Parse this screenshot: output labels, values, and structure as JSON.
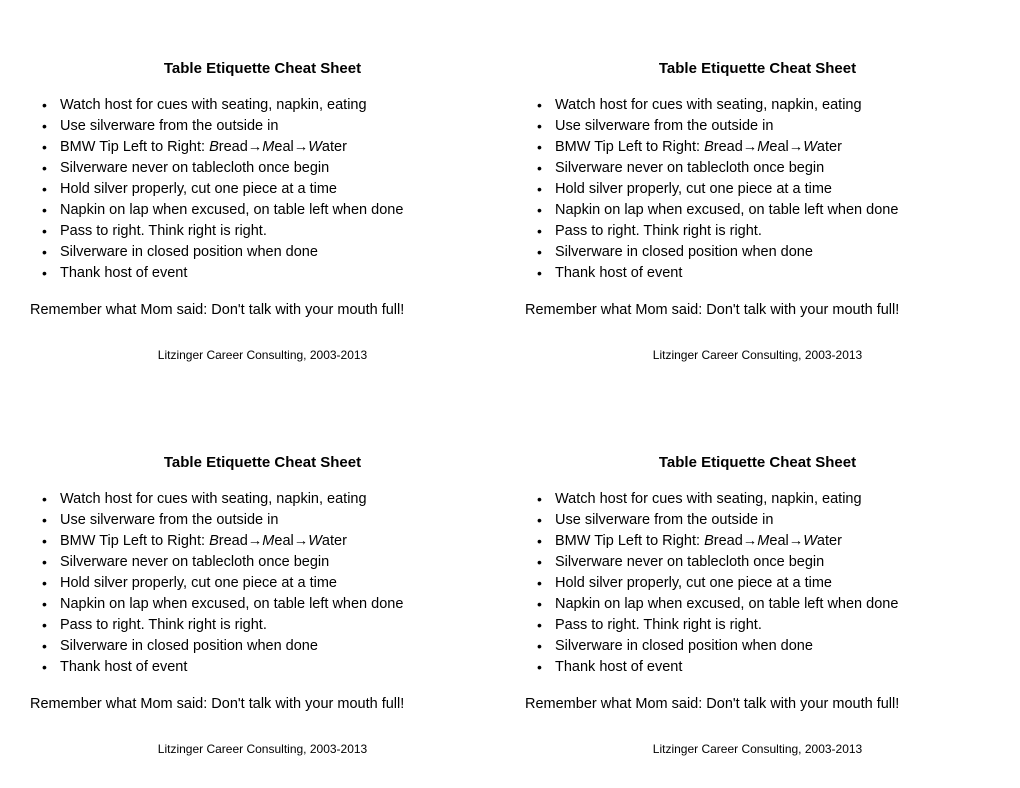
{
  "title": "Table Etiquette Cheat Sheet",
  "tips": [
    "Watch host for cues with seating, napkin, eating",
    "Use silverware from the outside in",
    "__BMW__",
    "Silverware never on tablecloth once begin",
    "Hold silver properly, cut one piece at a time",
    "Napkin on lap when excused, on table left when done",
    "__PASS__",
    "Silverware in closed position when done",
    "Thank host of event"
  ],
  "bmw": {
    "prefix": "BMW Tip Left to Right: ",
    "b": "B",
    "bread": "read→",
    "m": "M",
    "meal": "eal→",
    "w": "W",
    "water": "ater"
  },
  "pass_top": "Pass to right.  Think right is right.",
  "pass_bottom": "Pass to right. Think right is right.",
  "closing": "Remember what Mom said: Don't talk with your mouth full!",
  "footer": "Litzinger Career Consulting, 2003-2013"
}
